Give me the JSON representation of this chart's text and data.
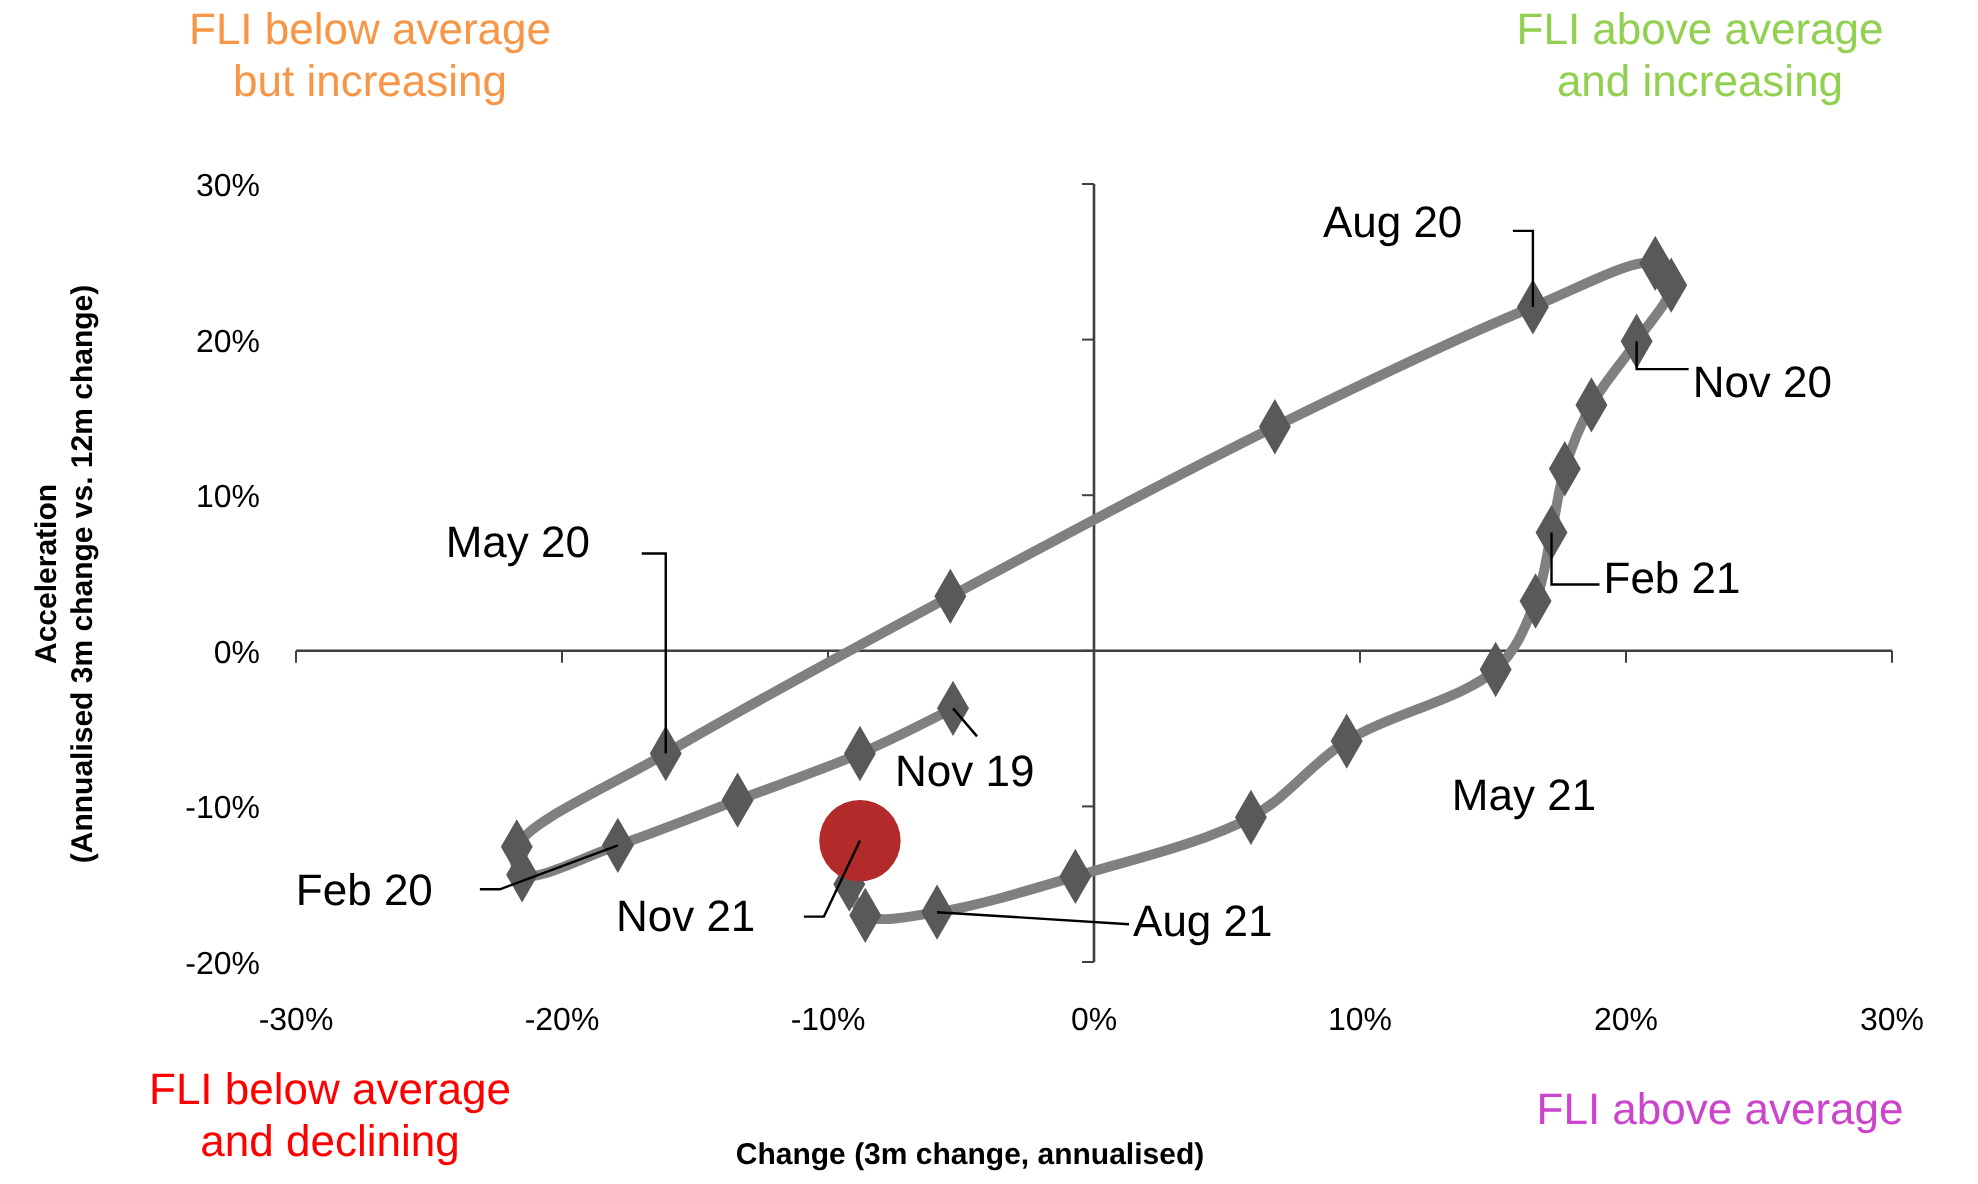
{
  "chart_data": {
    "type": "line",
    "xlabel": "Change (3m change, annualised)",
    "ylabel": "Acceleration\n(Annualised 3m change vs. 12m change)",
    "xlim": [
      -30,
      30
    ],
    "ylim": [
      -20,
      30
    ],
    "xticks": [
      {
        "value": -30,
        "label": "-30%"
      },
      {
        "value": -20,
        "label": "-20%"
      },
      {
        "value": -10,
        "label": "-10%"
      },
      {
        "value": 0,
        "label": "0%"
      },
      {
        "value": 10,
        "label": "10%"
      },
      {
        "value": 20,
        "label": "20%"
      },
      {
        "value": 30,
        "label": "30%"
      }
    ],
    "yticks": [
      {
        "value": -20,
        "label": "-20%"
      },
      {
        "value": -10,
        "label": "-10%"
      },
      {
        "value": 0,
        "label": "0%"
      },
      {
        "value": 10,
        "label": "10%"
      },
      {
        "value": 20,
        "label": "20%"
      },
      {
        "value": 30,
        "label": "30%"
      }
    ],
    "series": [
      {
        "color": "#808080",
        "marker": "diamond",
        "x": [
          -5.3,
          -8.8,
          -13.4,
          -17.9,
          -21.5,
          -21.7,
          -16.1,
          -5.4,
          6.8,
          16.5,
          21.1,
          21.7,
          20.4,
          18.7,
          17.7,
          17.2,
          16.6,
          15.1,
          9.5,
          5.9,
          -0.7,
          -5.9,
          -8.6,
          -9.2
        ],
        "values": [
          -3.7,
          -6.6,
          -9.6,
          -12.5,
          -14.4,
          -12.6,
          -6.6,
          3.5,
          14.4,
          22.1,
          24.9,
          23.5,
          19.9,
          15.8,
          11.7,
          7.6,
          3.2,
          -1.2,
          -5.8,
          -10.7,
          -14.5,
          -16.8,
          -17.0,
          -15.0
        ]
      },
      {
        "type": "scatter",
        "color": "#b22a2a",
        "marker": "circle",
        "x": [
          -8.8
        ],
        "values": [
          -12.2
        ]
      }
    ],
    "annotations": [
      {
        "text": "Nov 19",
        "x": -5.3,
        "y": -3.7
      },
      {
        "text": "Feb 20",
        "x": -17.9,
        "y": -12.5
      },
      {
        "text": "May 20",
        "x": -16.1,
        "y": -6.6
      },
      {
        "text": "Aug 20",
        "x": 16.5,
        "y": 22.1
      },
      {
        "text": "Nov 20",
        "x": 20.4,
        "y": 19.9
      },
      {
        "text": "Feb 21",
        "x": 17.2,
        "y": 7.6
      },
      "May 21",
      {
        "text": "Aug 21",
        "x": -5.9,
        "y": -16.8
      },
      {
        "text": "Nov 21",
        "x": -8.8,
        "y": -12.2
      },
      "FLI below average\nbut increasing",
      "FLI above average\nand increasing",
      "FLI below average\nand declining",
      "FLI above average"
    ]
  }
}
